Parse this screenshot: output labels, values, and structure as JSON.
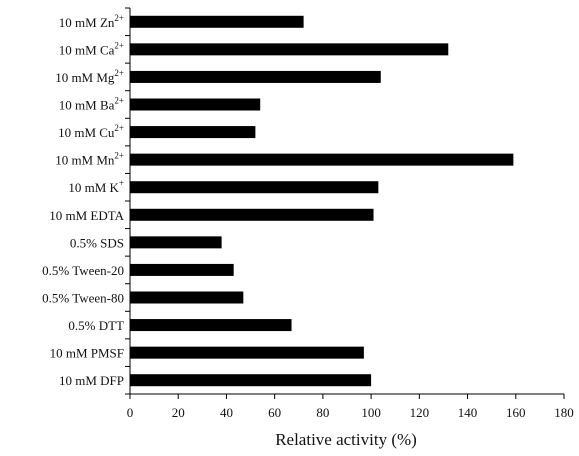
{
  "chart_data": {
    "type": "bar",
    "orientation": "horizontal",
    "categories": [
      {
        "main": "10 mM Zn",
        "sup": "2+"
      },
      {
        "main": "10 mM Ca",
        "sup": "2+"
      },
      {
        "main": "10 mM Mg",
        "sup": "2+"
      },
      {
        "main": "10 mM Ba",
        "sup": "2+"
      },
      {
        "main": "10 mM Cu",
        "sup": "2+"
      },
      {
        "main": "10 mM Mn",
        "sup": "2+"
      },
      {
        "main": "10 mM K",
        "sup": "+"
      },
      {
        "main": "10 mM EDTA",
        "sup": ""
      },
      {
        "main": "0.5% SDS",
        "sup": ""
      },
      {
        "main": "0.5% Tween-20",
        "sup": ""
      },
      {
        "main": "0.5% Tween-80",
        "sup": ""
      },
      {
        "main": "0.5% DTT",
        "sup": ""
      },
      {
        "main": "10 mM PMSF",
        "sup": ""
      },
      {
        "main": "10 mM DFP",
        "sup": ""
      }
    ],
    "values": [
      72,
      132,
      104,
      54,
      52,
      159,
      103,
      101,
      38,
      43,
      47,
      67,
      97,
      100
    ],
    "xlabel": "Relative activity (%)",
    "ylabel": "",
    "xlim": [
      0,
      180
    ],
    "xticks": [
      0,
      20,
      40,
      60,
      80,
      100,
      120,
      140,
      160,
      180
    ],
    "grid": false,
    "legend": "none",
    "bar_color": "#000000"
  }
}
